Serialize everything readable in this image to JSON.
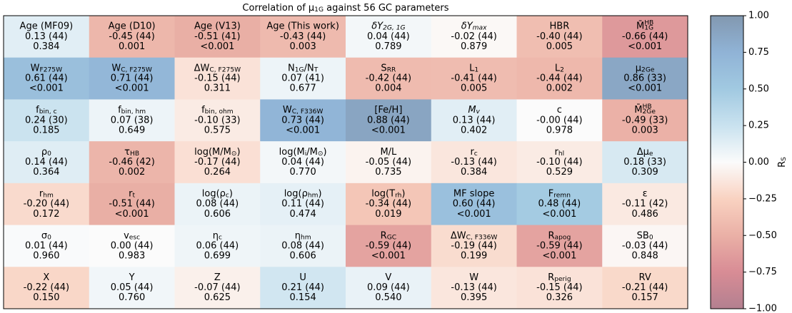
{
  "chart_data": {
    "type": "heatmap",
    "title": [
      {
        "text": "Correlation of μ"
      },
      {
        "sub": "1G"
      },
      {
        "text": " against 56 GC parameters"
      }
    ],
    "colorbar_label": [
      {
        "text": "R"
      },
      {
        "sub": "S"
      }
    ],
    "clim": [
      -1,
      1
    ],
    "colormap": [
      "#b38090",
      "#d88c95",
      "#eab0a6",
      "#f9d2c1",
      "#fbfbfb",
      "#c9e2ef",
      "#a1c9e1",
      "#90b3d6",
      "#8298b0"
    ],
    "cticks": [
      {
        "value": 1,
        "label": "1.00"
      },
      {
        "value": 0.75,
        "label": "0.75"
      },
      {
        "value": 0.5,
        "label": "0.50"
      },
      {
        "value": 0.25,
        "label": "0.25"
      },
      {
        "value": 0,
        "label": "0.00"
      },
      {
        "value": -0.25,
        "label": "−0.25"
      },
      {
        "value": -0.5,
        "label": "−0.50"
      },
      {
        "value": -0.75,
        "label": "−0.75"
      },
      {
        "value": -1,
        "label": "−1.00"
      }
    ],
    "cells": [
      [
        {
          "label": [
            {
              "text": "Age (MF09)"
            }
          ],
          "value": 0.13,
          "value_label": "0.13 (44)",
          "p": "0.384"
        },
        {
          "label": [
            {
              "text": "Age (D10)"
            }
          ],
          "value": -0.45,
          "value_label": "-0.45 (44)",
          "p": "0.001"
        },
        {
          "label": [
            {
              "text": "Age (V13)"
            }
          ],
          "value": -0.51,
          "value_label": "-0.51 (41)",
          "p": "<0.001"
        },
        {
          "label": [
            {
              "text": "Age (This work)"
            }
          ],
          "value": -0.43,
          "value_label": "-0.43 (44)",
          "p": "0.003"
        },
        {
          "label": [
            {
              "it": "δY"
            },
            {
              "sub_it": "2G, 1G"
            }
          ],
          "value": 0.04,
          "value_label": "0.04 (44)",
          "p": "0.789"
        },
        {
          "label": [
            {
              "it": "δY"
            },
            {
              "sub_it": "max"
            }
          ],
          "value": -0.02,
          "value_label": "-0.02 (44)",
          "p": "0.879"
        },
        {
          "label": [
            {
              "text": "HBR"
            }
          ],
          "value": -0.4,
          "value_label": "-0.40 (44)",
          "p": "0.005"
        },
        {
          "label": [
            {
              "text": "M̄"
            },
            {
              "sup": "HB"
            },
            {
              "sub_stack": "1G"
            }
          ],
          "value": -0.66,
          "value_label": "-0.66 (44)",
          "p": "<0.001"
        }
      ],
      [
        {
          "label": [
            {
              "text": "W"
            },
            {
              "sub": "F275W"
            }
          ],
          "value": 0.61,
          "value_label": "0.61 (44)",
          "p": "<0.001"
        },
        {
          "label": [
            {
              "text": "W"
            },
            {
              "sub": "C, F275W"
            }
          ],
          "value": 0.71,
          "value_label": "0.71 (44)",
          "p": "<0.001"
        },
        {
          "label": [
            {
              "text": "ΔW"
            },
            {
              "sub": "C, F275W"
            }
          ],
          "value": -0.15,
          "value_label": "-0.15 (44)",
          "p": "0.311"
        },
        {
          "label": [
            {
              "text": "N"
            },
            {
              "sub": "1G"
            },
            {
              "text": "/N"
            },
            {
              "sub": "T"
            }
          ],
          "value": 0.07,
          "value_label": "0.07 (41)",
          "p": "0.677"
        },
        {
          "label": [
            {
              "text": "S"
            },
            {
              "sub": "RR"
            }
          ],
          "value": -0.42,
          "value_label": "-0.42 (44)",
          "p": "0.004"
        },
        {
          "label": [
            {
              "text": "L"
            },
            {
              "sub": "1"
            }
          ],
          "value": -0.41,
          "value_label": "-0.41 (44)",
          "p": "0.005"
        },
        {
          "label": [
            {
              "text": "L"
            },
            {
              "sub": "2"
            }
          ],
          "value": -0.44,
          "value_label": "-0.44 (44)",
          "p": "0.002"
        },
        {
          "label": [
            {
              "text": "μ"
            },
            {
              "sub": "2Ge"
            }
          ],
          "value": 0.86,
          "value_label": "0.86 (33)",
          "p": "<0.001"
        }
      ],
      [
        {
          "label": [
            {
              "text": "f"
            },
            {
              "sub": "bin, c"
            }
          ],
          "value": 0.24,
          "value_label": "0.24 (30)",
          "p": "0.185"
        },
        {
          "label": [
            {
              "text": "f"
            },
            {
              "sub": "bin, hm"
            }
          ],
          "value": 0.07,
          "value_label": "0.07 (38)",
          "p": "0.649"
        },
        {
          "label": [
            {
              "text": "f"
            },
            {
              "sub": "bin, ohm"
            }
          ],
          "value": -0.1,
          "value_label": "-0.10 (33)",
          "p": "0.575"
        },
        {
          "label": [
            {
              "text": "W"
            },
            {
              "sub": "C, F336W"
            }
          ],
          "value": 0.73,
          "value_label": "0.73 (44)",
          "p": "<0.001"
        },
        {
          "label": [
            {
              "text": "[Fe/H]"
            }
          ],
          "value": 0.88,
          "value_label": "0.88 (44)",
          "p": "<0.001"
        },
        {
          "label": [
            {
              "it": "M"
            },
            {
              "sub_it": "v"
            }
          ],
          "value": 0.13,
          "value_label": "0.13 (44)",
          "p": "0.402"
        },
        {
          "label": [
            {
              "text": "c"
            }
          ],
          "value": 0,
          "value_label": "-0.00 (44)",
          "p": "0.978"
        },
        {
          "label": [
            {
              "text": "M̄"
            },
            {
              "sup": "HB"
            },
            {
              "sub_stack": "2Ge"
            }
          ],
          "value": -0.49,
          "value_label": "-0.49 (33)",
          "p": "0.003"
        }
      ],
      [
        {
          "label": [
            {
              "text": "ρ"
            },
            {
              "sub": "0"
            }
          ],
          "value": 0.14,
          "value_label": "0.14 (44)",
          "p": "0.364"
        },
        {
          "label": [
            {
              "text": "τ"
            },
            {
              "sub": "HB"
            }
          ],
          "value": -0.46,
          "value_label": "-0.46 (42)",
          "p": "0.002"
        },
        {
          "label": [
            {
              "text": "log(M/M"
            },
            {
              "sub": "⊙"
            },
            {
              "text": ")"
            }
          ],
          "value": -0.17,
          "value_label": "-0.17 (44)",
          "p": "0.264"
        },
        {
          "label": [
            {
              "text": "log(M"
            },
            {
              "sub": "i"
            },
            {
              "text": "/M"
            },
            {
              "sub": "⊙"
            },
            {
              "text": ")"
            }
          ],
          "value": 0.04,
          "value_label": "0.04 (44)",
          "p": "0.770"
        },
        {
          "label": [
            {
              "text": "M/L"
            }
          ],
          "value": -0.05,
          "value_label": "-0.05 (44)",
          "p": "0.735"
        },
        {
          "label": [
            {
              "text": "r"
            },
            {
              "sub": "c"
            }
          ],
          "value": -0.13,
          "value_label": "-0.13 (44)",
          "p": "0.384"
        },
        {
          "label": [
            {
              "text": "r"
            },
            {
              "sub": "hl"
            }
          ],
          "value": -0.1,
          "value_label": "-0.10 (44)",
          "p": "0.529"
        },
        {
          "label": [
            {
              "text": "Δμ"
            },
            {
              "sub": "e"
            }
          ],
          "value": 0.18,
          "value_label": "0.18 (33)",
          "p": "0.309"
        }
      ],
      [
        {
          "label": [
            {
              "text": "r"
            },
            {
              "sub": "hm"
            }
          ],
          "value": -0.2,
          "value_label": "-0.20 (44)",
          "p": "0.172"
        },
        {
          "label": [
            {
              "text": "r"
            },
            {
              "sub": "t"
            }
          ],
          "value": -0.51,
          "value_label": "-0.51 (44)",
          "p": "<0.001"
        },
        {
          "label": [
            {
              "text": "log(ρ"
            },
            {
              "sub": "c"
            },
            {
              "text": ")"
            }
          ],
          "value": 0.08,
          "value_label": "0.08 (44)",
          "p": "0.606"
        },
        {
          "label": [
            {
              "text": "log(ρ"
            },
            {
              "sub": "hm"
            },
            {
              "text": ")"
            }
          ],
          "value": 0.11,
          "value_label": "0.11 (44)",
          "p": "0.474"
        },
        {
          "label": [
            {
              "text": "log(T"
            },
            {
              "sub": "rh"
            },
            {
              "text": ")"
            }
          ],
          "value": -0.34,
          "value_label": "-0.34 (44)",
          "p": "0.019"
        },
        {
          "label": [
            {
              "text": "MF slope"
            }
          ],
          "value": 0.6,
          "value_label": "0.60 (44)",
          "p": "<0.001"
        },
        {
          "label": [
            {
              "text": "F"
            },
            {
              "sub": "remn"
            }
          ],
          "value": 0.48,
          "value_label": "0.48 (44)",
          "p": "<0.001"
        },
        {
          "label": [
            {
              "text": "ε"
            }
          ],
          "value": -0.11,
          "value_label": "-0.11 (42)",
          "p": "0.486"
        }
      ],
      [
        {
          "label": [
            {
              "text": "σ"
            },
            {
              "sub": "0"
            }
          ],
          "value": 0.01,
          "value_label": "0.01 (44)",
          "p": "0.960"
        },
        {
          "label": [
            {
              "text": "v"
            },
            {
              "sub": "esc"
            }
          ],
          "value": 0.0,
          "value_label": "0.00 (44)",
          "p": "0.983"
        },
        {
          "label": [
            {
              "text": "η"
            },
            {
              "sub": "c"
            }
          ],
          "value": 0.06,
          "value_label": "0.06 (44)",
          "p": "0.699"
        },
        {
          "label": [
            {
              "text": "η"
            },
            {
              "sub": "hm"
            }
          ],
          "value": 0.08,
          "value_label": "0.08 (44)",
          "p": "0.606"
        },
        {
          "label": [
            {
              "text": "R"
            },
            {
              "sub": "GC"
            }
          ],
          "value": -0.59,
          "value_label": "-0.59 (44)",
          "p": "<0.001"
        },
        {
          "label": [
            {
              "text": "ΔW"
            },
            {
              "sub": "C, F336W"
            }
          ],
          "value": -0.19,
          "value_label": "-0.19 (44)",
          "p": "0.199"
        },
        {
          "label": [
            {
              "text": "R"
            },
            {
              "sub": "apog"
            }
          ],
          "value": -0.59,
          "value_label": "-0.59 (44)",
          "p": "<0.001"
        },
        {
          "label": [
            {
              "text": "SB"
            },
            {
              "sub": "0"
            }
          ],
          "value": -0.03,
          "value_label": "-0.03 (44)",
          "p": "0.848"
        }
      ],
      [
        {
          "label": [
            {
              "text": "X"
            }
          ],
          "value": -0.22,
          "value_label": "-0.22 (44)",
          "p": "0.150"
        },
        {
          "label": [
            {
              "text": "Y"
            }
          ],
          "value": 0.05,
          "value_label": "0.05 (44)",
          "p": "0.760"
        },
        {
          "label": [
            {
              "text": "Z"
            }
          ],
          "value": -0.07,
          "value_label": "-0.07 (44)",
          "p": "0.625"
        },
        {
          "label": [
            {
              "text": "U"
            }
          ],
          "value": 0.21,
          "value_label": "0.21 (44)",
          "p": "0.154"
        },
        {
          "label": [
            {
              "text": "V"
            }
          ],
          "value": 0.09,
          "value_label": "0.09 (44)",
          "p": "0.540"
        },
        {
          "label": [
            {
              "text": "W"
            }
          ],
          "value": -0.13,
          "value_label": "-0.13 (44)",
          "p": "0.395"
        },
        {
          "label": [
            {
              "text": "R"
            },
            {
              "sub": "perig"
            }
          ],
          "value": -0.15,
          "value_label": "-0.15 (44)",
          "p": "0.326"
        },
        {
          "label": [
            {
              "text": "RV"
            }
          ],
          "value": -0.21,
          "value_label": "-0.21 (44)",
          "p": "0.157"
        }
      ]
    ]
  }
}
